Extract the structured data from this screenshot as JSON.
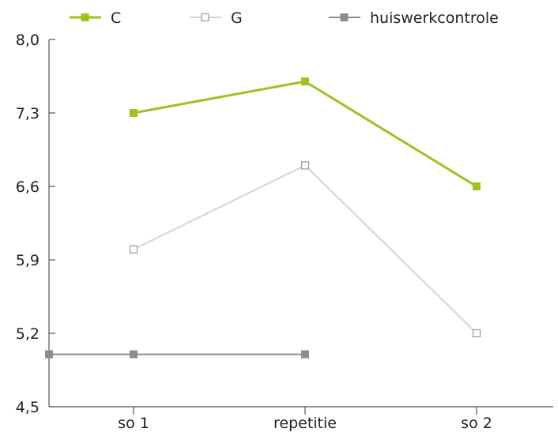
{
  "chart_data": {
    "type": "line",
    "categories": [
      "so 1",
      "repetitie",
      "so 2"
    ],
    "ylim": [
      4.5,
      8.0
    ],
    "yticks": [
      "4,5",
      "5,2",
      "5,9",
      "6,6",
      "7,3",
      "8,0"
    ],
    "series": [
      {
        "name": "C",
        "color": "#9bc31c",
        "marker": "filled-square",
        "values": [
          7.3,
          7.6,
          6.6
        ]
      },
      {
        "name": "G",
        "color": "#d4d4d4",
        "marker": "open-square",
        "values": [
          6.0,
          6.8,
          5.2
        ]
      },
      {
        "name": "huiswerkcontrole",
        "color": "#8c8c8c",
        "marker": "filled-square",
        "values": [
          5.0,
          5.0,
          null
        ],
        "extends_to_y_axis": true
      }
    ],
    "legend": "top",
    "grid": false
  }
}
